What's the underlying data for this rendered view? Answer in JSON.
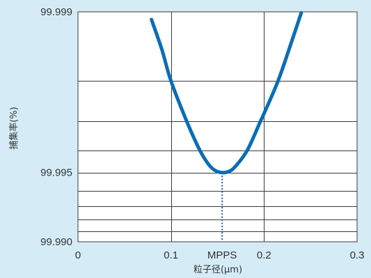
{
  "colors": {
    "background": "#d5ecf7",
    "plot_background": "#ffffff",
    "grid": "#3a3a3a",
    "curve": "#0a6db6",
    "mpps_line": "#1c58a3",
    "text": "#333333"
  },
  "chart_data": {
    "type": "line",
    "xlabel": "粒子径(μm)",
    "ylabel": "捕集率(%)",
    "xlim": [
      0,
      0.3
    ],
    "ylim": [
      99.99,
      99.999
    ],
    "yscale": "log",
    "grid": true,
    "xticks": [
      {
        "value": 0,
        "label": "0"
      },
      {
        "value": 0.1,
        "label": "0.1"
      },
      {
        "value": 0.2,
        "label": "0.2"
      },
      {
        "value": 0.3,
        "label": "0.3"
      }
    ],
    "xgrid": [
      0.1,
      0.2
    ],
    "yticks": [
      {
        "value": 99.999,
        "label": "99.999"
      },
      {
        "value": 99.995,
        "label": "99.995"
      },
      {
        "value": 99.99,
        "label": "99.990"
      }
    ],
    "ygrid": [
      99.998,
      99.997,
      99.996,
      99.995,
      99.994,
      99.993,
      99.992,
      99.991
    ],
    "annotations": [
      {
        "label": "MPPS",
        "x": 0.155,
        "y": 99.995
      }
    ],
    "series": [
      {
        "x": [
          0.079,
          0.09,
          0.1,
          0.117,
          0.131,
          0.141,
          0.148,
          0.155,
          0.162,
          0.169,
          0.182,
          0.196,
          0.2,
          0.215,
          0.227,
          0.24
        ],
        "y": [
          99.99892,
          99.99855,
          99.998,
          99.997,
          99.996,
          99.99536,
          99.99509,
          99.995,
          99.99505,
          99.99529,
          99.996,
          99.997,
          99.99723,
          99.998,
          99.99855,
          99.99899
        ]
      }
    ]
  }
}
